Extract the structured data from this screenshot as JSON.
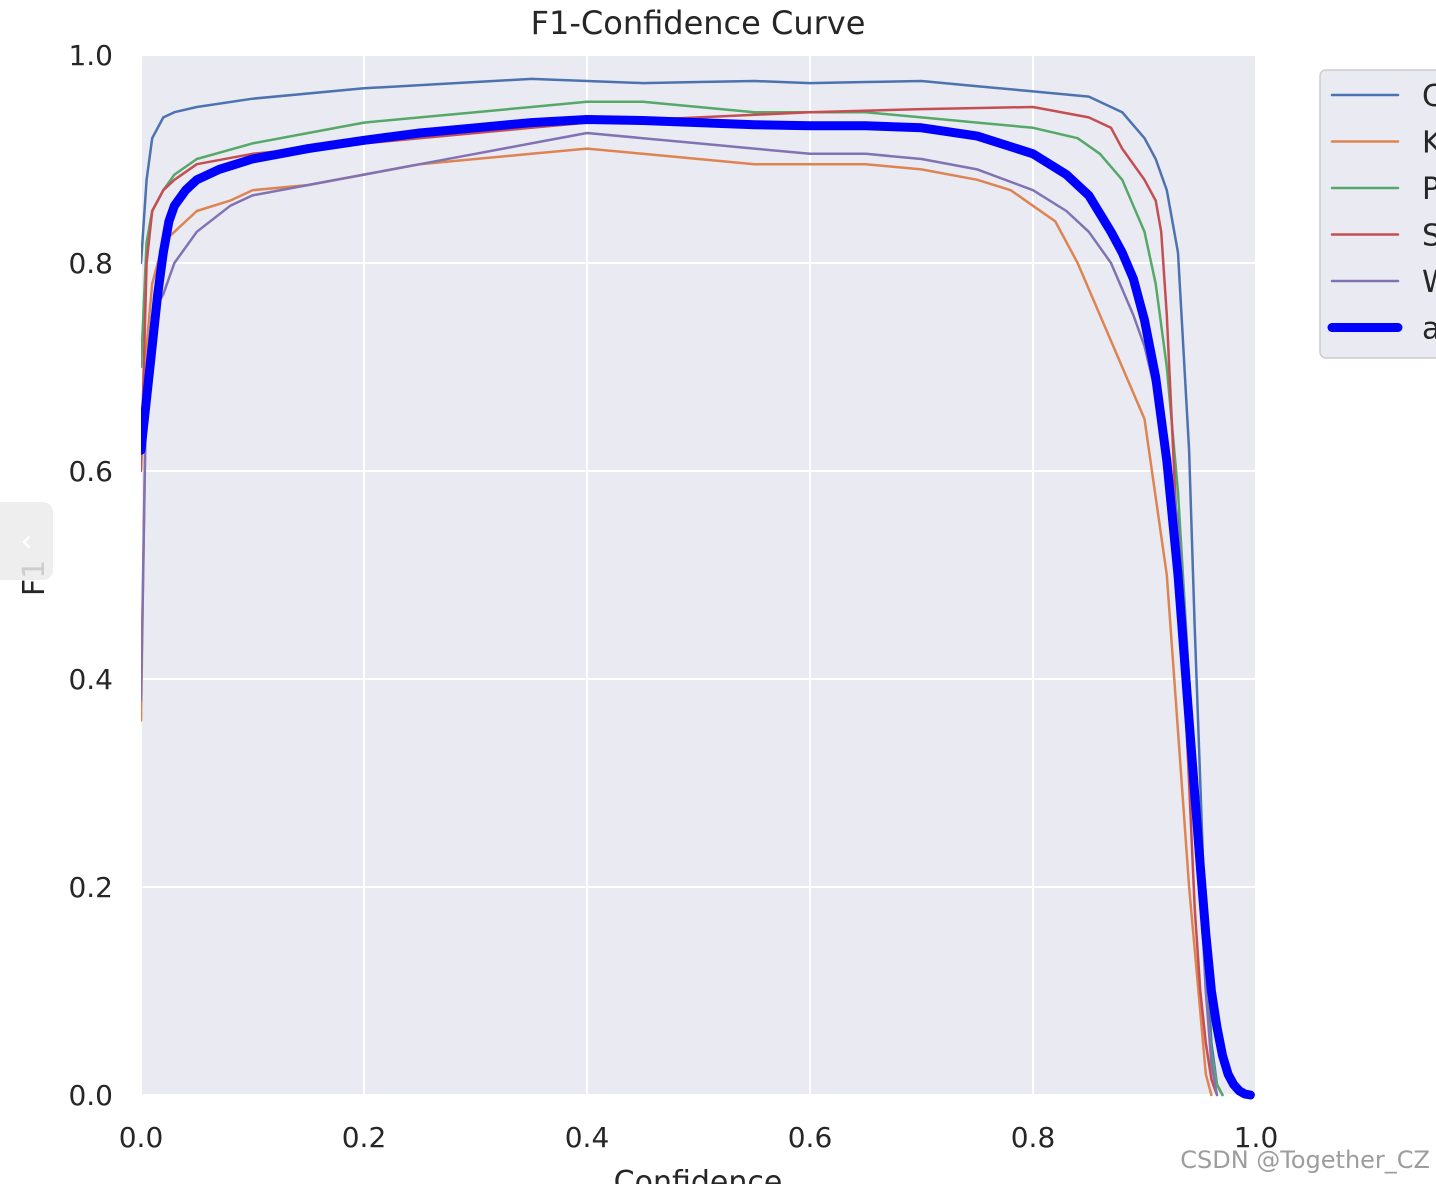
{
  "chart_data": {
    "type": "line",
    "title": "F1-Confidence Curve",
    "xlabel": "Confidence",
    "ylabel": "F1",
    "xlim": [
      0,
      1
    ],
    "ylim": [
      0,
      1
    ],
    "xticks": [
      "0.0",
      "0.2",
      "0.4",
      "0.6",
      "0.8",
      "1.0"
    ],
    "yticks": [
      "0.0",
      "0.2",
      "0.4",
      "0.6",
      "0.8",
      "1.0"
    ],
    "grid": true,
    "legend_position": "outside-right",
    "series": [
      {
        "name": "C",
        "color": "#4c72b0",
        "width": 2.5,
        "x": [
          0.0,
          0.005,
          0.01,
          0.02,
          0.03,
          0.05,
          0.1,
          0.2,
          0.3,
          0.35,
          0.4,
          0.45,
          0.5,
          0.55,
          0.6,
          0.65,
          0.7,
          0.75,
          0.8,
          0.85,
          0.88,
          0.9,
          0.91,
          0.92,
          0.93,
          0.94,
          0.945,
          0.95,
          0.955,
          0.96,
          0.965,
          0.97
        ],
        "y": [
          0.8,
          0.88,
          0.92,
          0.94,
          0.945,
          0.95,
          0.958,
          0.968,
          0.974,
          0.977,
          0.975,
          0.973,
          0.974,
          0.975,
          0.973,
          0.974,
          0.975,
          0.97,
          0.965,
          0.96,
          0.945,
          0.92,
          0.9,
          0.87,
          0.81,
          0.62,
          0.45,
          0.3,
          0.15,
          0.05,
          0.01,
          0.0
        ]
      },
      {
        "name": "K",
        "color": "#dd8452",
        "width": 2.5,
        "x": [
          0.0,
          0.005,
          0.01,
          0.02,
          0.03,
          0.05,
          0.08,
          0.1,
          0.15,
          0.2,
          0.25,
          0.3,
          0.35,
          0.4,
          0.45,
          0.5,
          0.55,
          0.6,
          0.65,
          0.7,
          0.75,
          0.78,
          0.8,
          0.82,
          0.84,
          0.86,
          0.88,
          0.9,
          0.92,
          0.93,
          0.94,
          0.95,
          0.955,
          0.96
        ],
        "y": [
          0.36,
          0.72,
          0.78,
          0.82,
          0.83,
          0.85,
          0.86,
          0.87,
          0.875,
          0.885,
          0.895,
          0.9,
          0.905,
          0.91,
          0.905,
          0.9,
          0.895,
          0.895,
          0.895,
          0.89,
          0.88,
          0.87,
          0.855,
          0.84,
          0.8,
          0.75,
          0.7,
          0.65,
          0.5,
          0.35,
          0.2,
          0.08,
          0.02,
          0.0
        ]
      },
      {
        "name": "P",
        "color": "#55a868",
        "width": 2.5,
        "x": [
          0.0,
          0.005,
          0.01,
          0.02,
          0.03,
          0.05,
          0.1,
          0.15,
          0.2,
          0.25,
          0.3,
          0.35,
          0.4,
          0.45,
          0.5,
          0.55,
          0.6,
          0.65,
          0.7,
          0.75,
          0.8,
          0.84,
          0.86,
          0.88,
          0.9,
          0.91,
          0.92,
          0.93,
          0.94,
          0.95,
          0.955,
          0.96,
          0.965,
          0.97
        ],
        "y": [
          0.7,
          0.82,
          0.85,
          0.87,
          0.885,
          0.9,
          0.915,
          0.925,
          0.935,
          0.94,
          0.945,
          0.95,
          0.955,
          0.955,
          0.95,
          0.945,
          0.945,
          0.945,
          0.94,
          0.935,
          0.93,
          0.92,
          0.905,
          0.88,
          0.83,
          0.78,
          0.7,
          0.58,
          0.4,
          0.2,
          0.1,
          0.04,
          0.01,
          0.0
        ]
      },
      {
        "name": "S",
        "color": "#c44e52",
        "width": 2.5,
        "x": [
          0.0,
          0.005,
          0.01,
          0.02,
          0.03,
          0.05,
          0.1,
          0.2,
          0.3,
          0.35,
          0.4,
          0.5,
          0.6,
          0.7,
          0.8,
          0.85,
          0.87,
          0.88,
          0.9,
          0.91,
          0.915,
          0.92,
          0.93,
          0.94,
          0.945,
          0.95,
          0.955,
          0.96,
          0.965
        ],
        "y": [
          0.6,
          0.8,
          0.85,
          0.87,
          0.88,
          0.895,
          0.905,
          0.915,
          0.925,
          0.93,
          0.935,
          0.94,
          0.945,
          0.948,
          0.95,
          0.94,
          0.93,
          0.91,
          0.88,
          0.86,
          0.83,
          0.75,
          0.52,
          0.3,
          0.18,
          0.1,
          0.05,
          0.015,
          0.0
        ]
      },
      {
        "name": "W",
        "color": "#8172b3",
        "width": 2.5,
        "x": [
          0.0,
          0.005,
          0.01,
          0.02,
          0.03,
          0.05,
          0.08,
          0.1,
          0.15,
          0.2,
          0.25,
          0.3,
          0.35,
          0.4,
          0.45,
          0.5,
          0.55,
          0.6,
          0.65,
          0.7,
          0.75,
          0.8,
          0.83,
          0.85,
          0.87,
          0.89,
          0.9,
          0.92,
          0.93,
          0.94,
          0.95,
          0.955,
          0.96,
          0.965
        ],
        "y": [
          0.38,
          0.7,
          0.75,
          0.77,
          0.8,
          0.83,
          0.855,
          0.865,
          0.875,
          0.885,
          0.895,
          0.905,
          0.915,
          0.925,
          0.92,
          0.915,
          0.91,
          0.905,
          0.905,
          0.9,
          0.89,
          0.87,
          0.85,
          0.83,
          0.8,
          0.75,
          0.72,
          0.63,
          0.55,
          0.4,
          0.22,
          0.1,
          0.03,
          0.0
        ]
      },
      {
        "name": "a",
        "color": "#0000ff",
        "width": 9,
        "x": [
          0.0,
          0.005,
          0.01,
          0.015,
          0.02,
          0.025,
          0.03,
          0.04,
          0.05,
          0.07,
          0.1,
          0.15,
          0.2,
          0.25,
          0.3,
          0.35,
          0.4,
          0.45,
          0.5,
          0.55,
          0.6,
          0.65,
          0.7,
          0.75,
          0.8,
          0.83,
          0.85,
          0.87,
          0.88,
          0.89,
          0.9,
          0.91,
          0.92,
          0.93,
          0.94,
          0.945,
          0.95,
          0.955,
          0.96,
          0.965,
          0.97,
          0.975,
          0.98,
          0.985,
          0.99,
          0.995
        ],
        "y": [
          0.62,
          0.67,
          0.72,
          0.77,
          0.81,
          0.84,
          0.855,
          0.87,
          0.88,
          0.89,
          0.9,
          0.91,
          0.918,
          0.925,
          0.93,
          0.935,
          0.938,
          0.937,
          0.935,
          0.933,
          0.932,
          0.932,
          0.93,
          0.922,
          0.905,
          0.885,
          0.865,
          0.83,
          0.81,
          0.785,
          0.745,
          0.69,
          0.61,
          0.5,
          0.36,
          0.29,
          0.22,
          0.155,
          0.1,
          0.065,
          0.038,
          0.02,
          0.01,
          0.004,
          0.001,
          0.0
        ]
      }
    ]
  },
  "ui": {
    "side_tab_glyph": "‹",
    "watermark": "CSDN @Together_CZ"
  }
}
